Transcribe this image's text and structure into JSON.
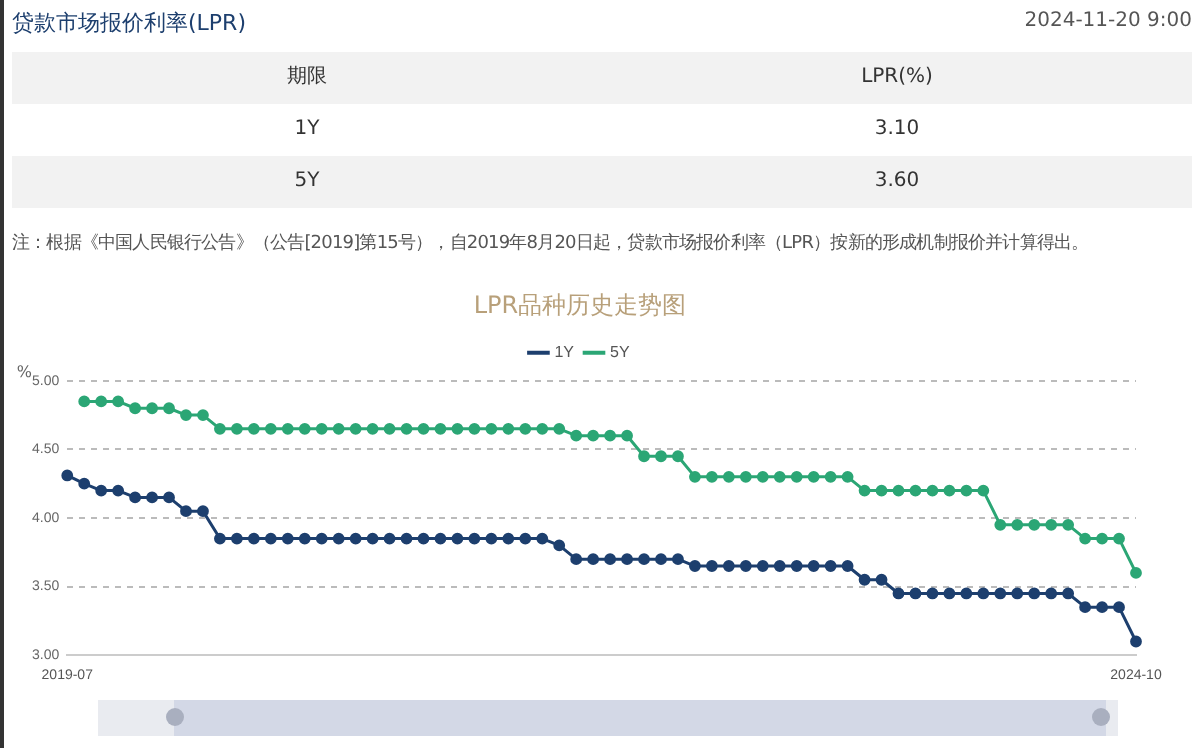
{
  "chart_data": {
    "type": "line",
    "title": "LPR品种历史走势图",
    "ylabel": "%",
    "annotations": [
      "贷款市场报价利率(LPR)",
      "2024-11-20 9:00",
      "期限",
      "LPR(%)",
      "1Y",
      "3.10",
      "5Y",
      "3.60",
      "注：根据《中国人民银行公告》（公告[2019]第15号），自2019年8月20日起，贷款市场报价利率（LPR）按新的形成机制报价并计算得出。"
    ],
    "categories": [
      "2019-07",
      null,
      null,
      null,
      null,
      null,
      null,
      null,
      null,
      null,
      null,
      null,
      null,
      null,
      null,
      null,
      null,
      null,
      null,
      null,
      null,
      null,
      null,
      null,
      null,
      null,
      null,
      null,
      null,
      null,
      null,
      null,
      null,
      null,
      null,
      null,
      null,
      null,
      null,
      null,
      null,
      null,
      null,
      null,
      null,
      null,
      null,
      null,
      null,
      null,
      null,
      null,
      null,
      null,
      null,
      null,
      null,
      null,
      null,
      null,
      null,
      null,
      null,
      "2024-10"
    ],
    "series": [
      {
        "name": "1Y",
        "color": "#1d3f6e",
        "values": [
          4.31,
          4.25,
          4.2,
          4.2,
          4.15,
          4.15,
          4.15,
          4.05,
          4.05,
          3.85,
          3.85,
          3.85,
          3.85,
          3.85,
          3.85,
          3.85,
          3.85,
          3.85,
          3.85,
          3.85,
          3.85,
          3.85,
          3.85,
          3.85,
          3.85,
          3.85,
          3.85,
          3.85,
          3.85,
          3.8,
          3.7,
          3.7,
          3.7,
          3.7,
          3.7,
          3.7,
          3.7,
          3.65,
          3.65,
          3.65,
          3.65,
          3.65,
          3.65,
          3.65,
          3.65,
          3.65,
          3.65,
          3.55,
          3.55,
          3.45,
          3.45,
          3.45,
          3.45,
          3.45,
          3.45,
          3.45,
          3.45,
          3.45,
          3.45,
          3.45,
          3.35,
          3.35,
          3.35,
          3.1
        ]
      },
      {
        "name": "5Y",
        "color": "#2ba675",
        "values": [
          null,
          4.85,
          4.85,
          4.85,
          4.8,
          4.8,
          4.8,
          4.75,
          4.75,
          4.65,
          4.65,
          4.65,
          4.65,
          4.65,
          4.65,
          4.65,
          4.65,
          4.65,
          4.65,
          4.65,
          4.65,
          4.65,
          4.65,
          4.65,
          4.65,
          4.65,
          4.65,
          4.65,
          4.65,
          4.65,
          4.6,
          4.6,
          4.6,
          4.6,
          4.45,
          4.45,
          4.45,
          4.3,
          4.3,
          4.3,
          4.3,
          4.3,
          4.3,
          4.3,
          4.3,
          4.3,
          4.3,
          4.2,
          4.2,
          4.2,
          4.2,
          4.2,
          4.2,
          4.2,
          4.2,
          3.95,
          3.95,
          3.95,
          3.95,
          3.95,
          3.85,
          3.85,
          3.85,
          3.6
        ]
      }
    ],
    "ylim": [
      3,
      5
    ],
    "yticks": [
      {
        "value": 3,
        "label": "3.00"
      },
      {
        "value": 3.5,
        "label": "3.50"
      },
      {
        "value": 4,
        "label": "4.00"
      },
      {
        "value": 4.5,
        "label": "4.50"
      },
      {
        "value": 5,
        "label": "5.00"
      }
    ],
    "grid": "y",
    "legend": "top",
    "marker": "circle",
    "line_style": "solid"
  }
}
